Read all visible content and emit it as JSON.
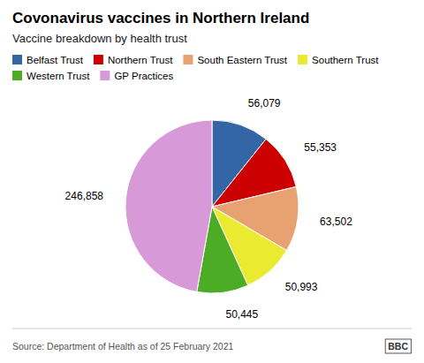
{
  "chart_data": {
    "type": "pie",
    "title": "Covonavirus vaccines in Northern Ireland",
    "subtitle": "Vaccine breakdown by health trust",
    "categories": [
      "Belfast Trust",
      "Northern Trust",
      "South Eastern Trust",
      "Southern Trust",
      "Western Trust",
      "GP Practices"
    ],
    "values": [
      56079,
      55353,
      63502,
      50993,
      50445,
      246858
    ],
    "value_labels": [
      "56,079",
      "55,353",
      "63,502",
      "50,993",
      "50,445",
      "246,858"
    ],
    "colors": [
      "#3465a4",
      "#cc0000",
      "#e8a272",
      "#eaea30",
      "#4dac26",
      "#d899d8"
    ],
    "data_labels": true,
    "legend": "top",
    "annotations": [
      "Source: Department of Health as of 25 February 2021",
      "BBC"
    ]
  }
}
